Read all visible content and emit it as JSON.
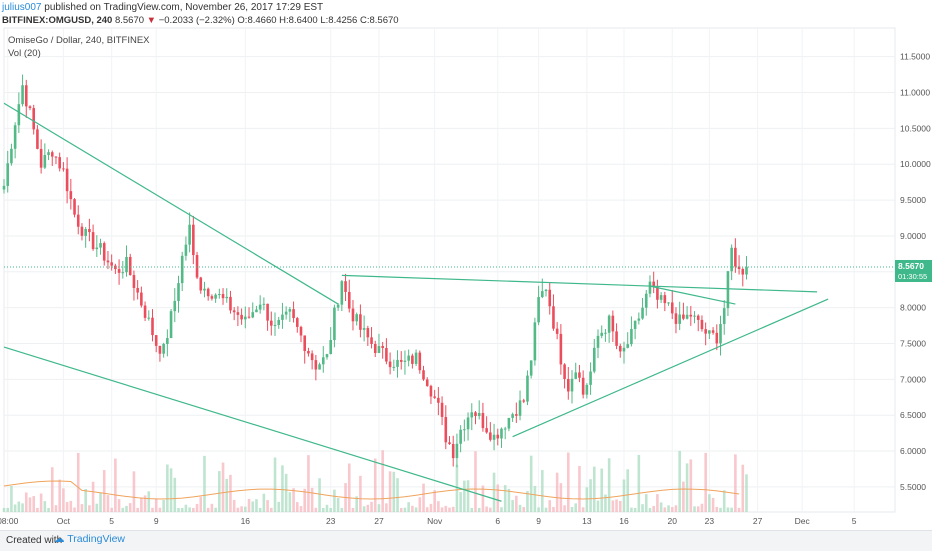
{
  "header": {
    "user": "julius007",
    "published_text": "published on TradingView.com, November 26, 2017 17:29 EST",
    "symbol": "BITFINEX:OMGUSD, 240",
    "last": "8.5670",
    "change": "−0.2033 (−2.32%)",
    "open": "O:8.4660",
    "high": "H:8.6400",
    "low": "L:8.4256",
    "close": "C:8.5670"
  },
  "legend": {
    "title": "OmiseGo / Dollar, 240, BITFINEX",
    "vol": "Vol (20)"
  },
  "price_badge": {
    "value": "8.5670",
    "countdown": "01:30:55"
  },
  "footer": {
    "created": "Created with",
    "brand": "TradingView"
  },
  "colors": {
    "up": "#53b987",
    "down": "#eb4d5c",
    "trendline": "#3fb88b",
    "badge": "#3fb88b",
    "ma": "#f0a35c"
  },
  "chart_data": {
    "type": "candlestick",
    "xlim": [
      0,
      240
    ],
    "ylim": [
      5.15,
      11.9
    ],
    "y_ticks": [
      "11.5000",
      "11.0000",
      "10.5000",
      "10.0000",
      "9.5000",
      "9.0000",
      "8.5000",
      "8.0000",
      "7.5000",
      "7.0000",
      "6.5000",
      "6.0000",
      "5.5000"
    ],
    "y_tick_values": [
      11.5,
      11.0,
      10.5,
      10.0,
      9.5,
      9.0,
      8.5,
      8.0,
      7.5,
      7.0,
      6.5,
      6.0,
      5.5
    ],
    "x_ticks": [
      {
        "label": "08:00",
        "x": 1
      },
      {
        "label": "Oct",
        "x": 16
      },
      {
        "label": "5",
        "x": 29
      },
      {
        "label": "9",
        "x": 41
      },
      {
        "label": "16",
        "x": 65
      },
      {
        "label": "23",
        "x": 88
      },
      {
        "label": "27",
        "x": 101
      },
      {
        "label": "Nov",
        "x": 116
      },
      {
        "label": "6",
        "x": 133
      },
      {
        "label": "9",
        "x": 144
      },
      {
        "label": "13",
        "x": 157
      },
      {
        "label": "16",
        "x": 167
      },
      {
        "label": "20",
        "x": 180
      },
      {
        "label": "23",
        "x": 190
      },
      {
        "label": "27",
        "x": 203
      },
      {
        "label": "Dec",
        "x": 215
      },
      {
        "label": "5",
        "x": 229
      }
    ],
    "anchors": [
      [
        0,
        9.7
      ],
      [
        3,
        10.6
      ],
      [
        5,
        11.1
      ],
      [
        7,
        10.7
      ],
      [
        10,
        10.0
      ],
      [
        13,
        10.2
      ],
      [
        16,
        9.9
      ],
      [
        19,
        9.3
      ],
      [
        22,
        9.0
      ],
      [
        26,
        8.8
      ],
      [
        30,
        8.5
      ],
      [
        33,
        8.6
      ],
      [
        36,
        8.2
      ],
      [
        39,
        7.8
      ],
      [
        41,
        7.5
      ],
      [
        43,
        7.4
      ],
      [
        46,
        8.1
      ],
      [
        48,
        8.7
      ],
      [
        50,
        9.1
      ],
      [
        51,
        8.7
      ],
      [
        53,
        8.3
      ],
      [
        57,
        8.2
      ],
      [
        61,
        8.0
      ],
      [
        65,
        7.8
      ],
      [
        69,
        8.1
      ],
      [
        73,
        7.7
      ],
      [
        77,
        7.9
      ],
      [
        81,
        7.5
      ],
      [
        84,
        7.2
      ],
      [
        87,
        7.3
      ],
      [
        89,
        7.9
      ],
      [
        91,
        8.4
      ],
      [
        93,
        8.0
      ],
      [
        96,
        7.7
      ],
      [
        99,
        7.5
      ],
      [
        103,
        7.3
      ],
      [
        107,
        7.2
      ],
      [
        111,
        7.3
      ],
      [
        114,
        7.0
      ],
      [
        117,
        6.6
      ],
      [
        119,
        6.2
      ],
      [
        121,
        6.0
      ],
      [
        123,
        6.3
      ],
      [
        126,
        6.6
      ],
      [
        129,
        6.4
      ],
      [
        132,
        6.2
      ],
      [
        135,
        6.4
      ],
      [
        138,
        6.6
      ],
      [
        140,
        6.7
      ],
      [
        142,
        7.3
      ],
      [
        144,
        8.1
      ],
      [
        146,
        8.3
      ],
      [
        148,
        7.8
      ],
      [
        150,
        7.3
      ],
      [
        152,
        6.9
      ],
      [
        154,
        7.2
      ],
      [
        156,
        6.8
      ],
      [
        158,
        7.1
      ],
      [
        160,
        7.6
      ],
      [
        163,
        7.8
      ],
      [
        166,
        7.3
      ],
      [
        169,
        7.6
      ],
      [
        172,
        8.0
      ],
      [
        174,
        8.3
      ],
      [
        176,
        8.1
      ],
      [
        179,
        8.0
      ],
      [
        182,
        7.8
      ],
      [
        185,
        7.9
      ],
      [
        188,
        7.7
      ],
      [
        190,
        7.6
      ],
      [
        192,
        7.6
      ],
      [
        194,
        8.0
      ],
      [
        196,
        8.8
      ],
      [
        198,
        8.5
      ],
      [
        200,
        8.57
      ]
    ],
    "trendlines": [
      {
        "from": [
          0,
          10.85
        ],
        "to": [
          90,
          8.05
        ]
      },
      {
        "from": [
          0,
          7.45
        ],
        "to": [
          134,
          5.3
        ]
      },
      {
        "from": [
          91,
          8.45
        ],
        "to": [
          219,
          8.22
        ]
      },
      {
        "from": [
          174,
          8.3
        ],
        "to": [
          197,
          8.05
        ]
      },
      {
        "from": [
          137,
          6.2
        ],
        "to": [
          222,
          8.12
        ]
      }
    ],
    "current_price": 8.567
  }
}
